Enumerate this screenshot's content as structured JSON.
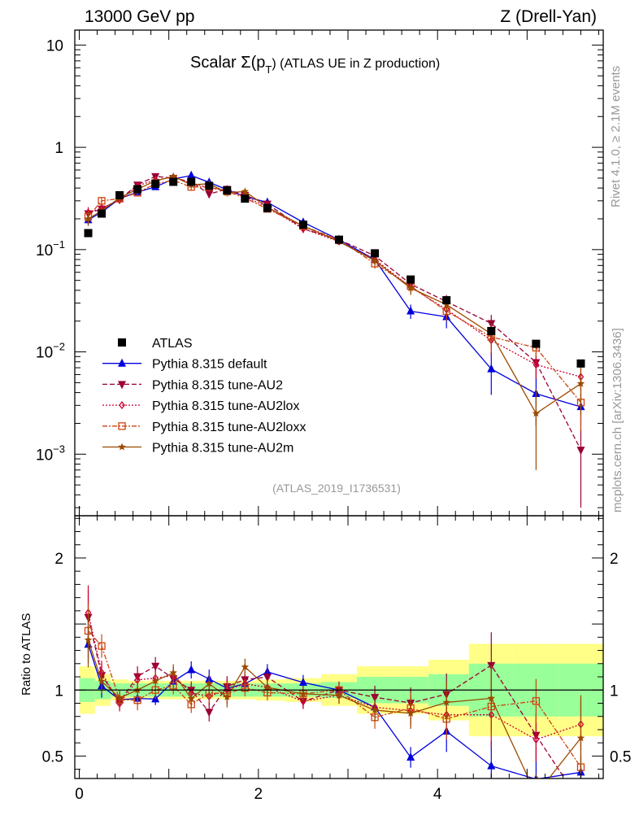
{
  "header": {
    "left": "13000 GeV pp",
    "right": "Z (Drell-Yan)"
  },
  "side_labels": {
    "rivet": "Rivet 4.1.0, ≥ 2.1M events",
    "mcplots": "mcplots.cern.ch [arXiv:1306.3436]"
  },
  "chart_data": {
    "type": "line",
    "title": "Scalar Σ(p_T) (ATLAS UE in Z production)",
    "title_parts": {
      "main": "Scalar Σ(p",
      "sub": "T",
      "tail": ") (ATLAS UE in Z production)"
    },
    "watermark": "(ATLAS_2019_I1736531)",
    "xlabel": "",
    "ylabel": "",
    "ratio_ylabel": "Ratio to ATLAS",
    "xlim": [
      -0.05,
      5.85
    ],
    "ylim_log": [
      0.00025,
      14
    ],
    "ratio_ylim": [
      0.33,
      2.32
    ],
    "x_ticks": [
      "0",
      "2",
      "4"
    ],
    "y_ticks": [
      {
        "value": 0.001,
        "base": "10",
        "exp": "−3"
      },
      {
        "value": 0.01,
        "base": "10",
        "exp": "−2"
      },
      {
        "value": 0.1,
        "base": "10",
        "exp": "−1"
      },
      {
        "value": 1,
        "base": "1",
        "exp": ""
      },
      {
        "value": 10,
        "base": "10",
        "exp": ""
      }
    ],
    "ratio_ticks": [
      "0.5",
      "1",
      "2"
    ],
    "x": [
      0.1,
      0.25,
      0.45,
      0.65,
      0.85,
      1.05,
      1.25,
      1.45,
      1.65,
      1.85,
      2.1,
      2.5,
      2.9,
      3.3,
      3.7,
      4.1,
      4.6,
      5.1,
      5.6
    ],
    "data": {
      "name": "ATLAS",
      "values": [
        0.145,
        0.225,
        0.34,
        0.39,
        0.44,
        0.46,
        0.46,
        0.42,
        0.38,
        0.315,
        0.255,
        0.175,
        0.125,
        0.092,
        0.051,
        0.032,
        0.016,
        0.012,
        0.0077
      ],
      "ratio_band_inner": [
        0.09,
        0.07,
        0.05,
        0.05,
        0.05,
        0.05,
        0.05,
        0.05,
        0.05,
        0.05,
        0.05,
        0.05,
        0.06,
        0.1,
        0.1,
        0.12,
        0.2,
        0.2,
        0.2
      ],
      "ratio_band_outer": [
        0.18,
        0.12,
        0.08,
        0.07,
        0.07,
        0.07,
        0.07,
        0.07,
        0.07,
        0.07,
        0.08,
        0.09,
        0.12,
        0.18,
        0.18,
        0.23,
        0.35,
        0.35,
        0.35
      ]
    },
    "series": [
      {
        "name": "Pythia 8.315 default",
        "color": "#0000dd",
        "dash": "none",
        "marker": "triangle-up",
        "values": [
          0.195,
          0.232,
          0.315,
          0.365,
          0.41,
          0.49,
          0.53,
          0.455,
          0.385,
          0.33,
          0.29,
          0.185,
          0.125,
          0.08,
          0.025,
          0.022,
          0.0068,
          0.0039,
          0.0029
        ],
        "errors": [
          0.02,
          0.02,
          0.02,
          0.02,
          0.02,
          0.03,
          0.03,
          0.03,
          0.02,
          0.02,
          0.015,
          0.01,
          0.008,
          0.006,
          0.004,
          0.005,
          0.003,
          0.002,
          0.001
        ]
      },
      {
        "name": "Pythia 8.315 tune-AU2",
        "color": "#990033",
        "dash": "6,3",
        "marker": "triangle-down",
        "values": [
          0.225,
          0.25,
          0.31,
          0.43,
          0.52,
          0.5,
          0.46,
          0.35,
          0.39,
          0.34,
          0.28,
          0.16,
          0.125,
          0.087,
          0.046,
          0.031,
          0.019,
          0.0079,
          0.0011
        ],
        "errors": [
          0.03,
          0.02,
          0.02,
          0.03,
          0.03,
          0.03,
          0.03,
          0.03,
          0.03,
          0.02,
          0.015,
          0.01,
          0.008,
          0.008,
          0.006,
          0.005,
          0.004,
          0.002,
          0.0008
        ]
      },
      {
        "name": "Pythia 8.315 tune-AU2lox",
        "color": "#cc0033",
        "dash": "2,2",
        "marker": "diamond",
        "values": [
          0.23,
          0.255,
          0.305,
          0.42,
          0.48,
          0.51,
          0.45,
          0.4,
          0.38,
          0.33,
          0.26,
          0.16,
          0.12,
          0.08,
          0.043,
          0.026,
          0.013,
          0.0075,
          0.0057
        ],
        "errors": [
          0.03,
          0.02,
          0.02,
          0.03,
          0.03,
          0.03,
          0.03,
          0.03,
          0.03,
          0.02,
          0.015,
          0.01,
          0.008,
          0.008,
          0.006,
          0.005,
          0.004,
          0.002,
          0.0015
        ]
      },
      {
        "name": "Pythia 8.315 tune-AU2loxx",
        "color": "#cc4411",
        "dash": "6,2,2,2",
        "marker": "square-open",
        "values": [
          0.21,
          0.3,
          0.315,
          0.36,
          0.44,
          0.475,
          0.41,
          0.41,
          0.37,
          0.32,
          0.25,
          0.17,
          0.125,
          0.073,
          0.044,
          0.025,
          0.014,
          0.011,
          0.0032
        ],
        "errors": [
          0.03,
          0.02,
          0.02,
          0.03,
          0.03,
          0.03,
          0.03,
          0.03,
          0.03,
          0.02,
          0.015,
          0.01,
          0.008,
          0.008,
          0.006,
          0.005,
          0.004,
          0.002,
          0.0015
        ]
      },
      {
        "name": "Pythia 8.315 tune-AU2m",
        "color": "#9b4a00",
        "dash": "none",
        "marker": "star",
        "values": [
          0.2,
          0.24,
          0.32,
          0.39,
          0.47,
          0.52,
          0.43,
          0.44,
          0.36,
          0.37,
          0.26,
          0.17,
          0.12,
          0.078,
          0.042,
          0.029,
          0.015,
          0.0025,
          0.0049
        ],
        "errors": [
          0.03,
          0.02,
          0.02,
          0.03,
          0.03,
          0.03,
          0.03,
          0.03,
          0.03,
          0.02,
          0.015,
          0.01,
          0.008,
          0.008,
          0.006,
          0.005,
          0.004,
          0.0018,
          0.0025
        ]
      }
    ]
  }
}
